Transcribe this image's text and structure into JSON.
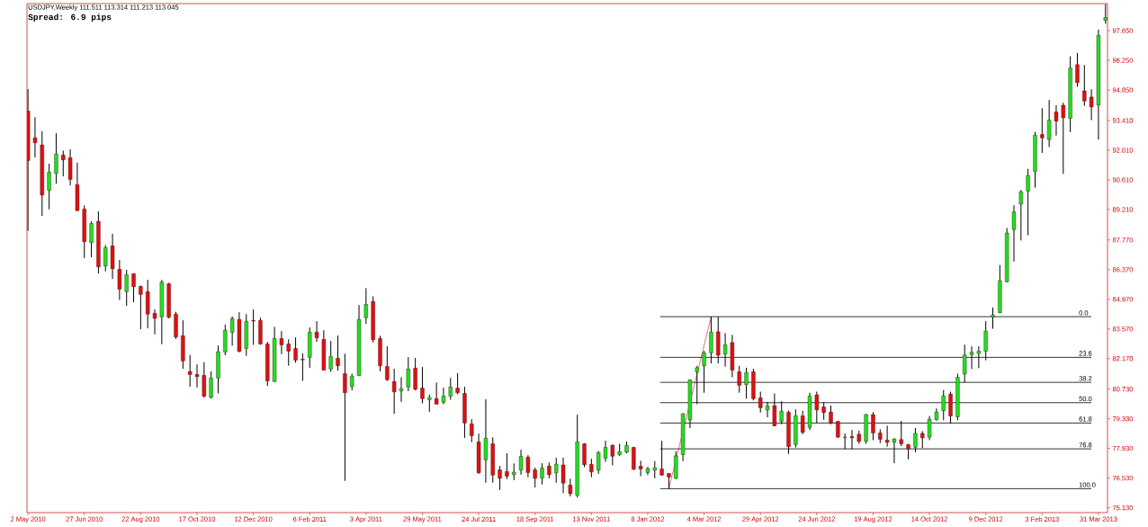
{
  "chart_data": {
    "type": "candlestick",
    "title": "USDJPY,Weekly 111.511 113.314 111.213 113.045",
    "annotations": [
      "Spread: 6.9 pips",
      {
        "text": "0.0",
        "x": "2013-03-10",
        "y": 84.15
      },
      {
        "text": "23.6",
        "x": "2013-03-10",
        "y": 82.23
      },
      {
        "text": "38.2",
        "x": "2013-03-10",
        "y": 81.05
      },
      {
        "text": "50.0",
        "x": "2013-03-10",
        "y": 80.09
      },
      {
        "text": "61.8",
        "x": "2013-03-10",
        "y": 79.13
      },
      {
        "text": "76.8",
        "x": "2013-03-10",
        "y": 77.91
      },
      {
        "text": "100.0",
        "x": "2013-03-10",
        "y": 76.03
      }
    ],
    "x": [
      "2010-05-02",
      "2010-05-09",
      "2010-05-16",
      "2010-05-23",
      "2010-05-30",
      "2010-06-06",
      "2010-06-13",
      "2010-06-20",
      "2010-06-27",
      "2010-07-04",
      "2010-07-11",
      "2010-07-18",
      "2010-07-25",
      "2010-08-01",
      "2010-08-08",
      "2010-08-15",
      "2010-08-22",
      "2010-08-29",
      "2010-09-05",
      "2010-09-12",
      "2010-09-19",
      "2010-09-26",
      "2010-10-03",
      "2010-10-10",
      "2010-10-17",
      "2010-10-24",
      "2010-10-31",
      "2010-11-07",
      "2010-11-14",
      "2010-11-21",
      "2010-11-28",
      "2010-12-05",
      "2010-12-12",
      "2010-12-19",
      "2010-12-26",
      "2011-01-02",
      "2011-01-09",
      "2011-01-16",
      "2011-01-23",
      "2011-01-30",
      "2011-02-06",
      "2011-02-13",
      "2011-02-20",
      "2011-02-27",
      "2011-03-06",
      "2011-03-13",
      "2011-03-20",
      "2011-03-27",
      "2011-04-03",
      "2011-04-10",
      "2011-04-17",
      "2011-04-24",
      "2011-05-01",
      "2011-05-08",
      "2011-05-15",
      "2011-05-22",
      "2011-05-29",
      "2011-06-05",
      "2011-06-12",
      "2011-06-19",
      "2011-06-26",
      "2011-07-03",
      "2011-07-10",
      "2011-07-17",
      "2011-07-24",
      "2011-07-31",
      "2011-08-07",
      "2011-08-14",
      "2011-08-21",
      "2011-08-28",
      "2011-09-04",
      "2011-09-11",
      "2011-09-18",
      "2011-09-25",
      "2011-10-02",
      "2011-10-09",
      "2011-10-16",
      "2011-10-23",
      "2011-10-30",
      "2011-11-06",
      "2011-11-13",
      "2011-11-20",
      "2011-11-27",
      "2011-12-04",
      "2011-12-11",
      "2011-12-18",
      "2011-12-25",
      "2012-01-01",
      "2012-01-08",
      "2012-01-15",
      "2012-01-22",
      "2012-01-29",
      "2012-02-05",
      "2012-02-12",
      "2012-02-19",
      "2012-02-26",
      "2012-03-04",
      "2012-03-11",
      "2012-03-18",
      "2012-03-25",
      "2012-04-01",
      "2012-04-08",
      "2012-04-15",
      "2012-04-22",
      "2012-04-29",
      "2012-05-06",
      "2012-05-13",
      "2012-05-20",
      "2012-05-27",
      "2012-06-03",
      "2012-06-10",
      "2012-06-17",
      "2012-06-24",
      "2012-07-01",
      "2012-07-08",
      "2012-07-15",
      "2012-07-22",
      "2012-07-29",
      "2012-08-05",
      "2012-08-12",
      "2012-08-19",
      "2012-08-26",
      "2012-09-02",
      "2012-09-09",
      "2012-09-16",
      "2012-09-23",
      "2012-09-30",
      "2012-10-07",
      "2012-10-14",
      "2012-10-21",
      "2012-10-28",
      "2012-11-04",
      "2012-11-11",
      "2012-11-18",
      "2012-11-25",
      "2012-12-02",
      "2012-12-09",
      "2012-12-16",
      "2012-12-23",
      "2012-12-30",
      "2013-01-06",
      "2013-01-13",
      "2013-01-20",
      "2013-01-27",
      "2013-02-03",
      "2013-02-10",
      "2013-02-17",
      "2013-02-24",
      "2013-03-03",
      "2013-03-10",
      "2013-03-17",
      "2013-03-24",
      "2013-03-31",
      "2013-04-07"
    ],
    "ohlc": [
      [
        93.86,
        94.89,
        88.2,
        91.52
      ],
      [
        92.59,
        93.57,
        91.66,
        92.36
      ],
      [
        92.26,
        92.9,
        88.91,
        89.89
      ],
      [
        90.11,
        91.37,
        89.22,
        90.97
      ],
      [
        90.91,
        92.81,
        90.43,
        91.83
      ],
      [
        91.78,
        91.99,
        90.77,
        91.55
      ],
      [
        91.65,
        92.05,
        90.35,
        90.63
      ],
      [
        90.38,
        91.42,
        89.12,
        89.16
      ],
      [
        89.23,
        89.4,
        86.92,
        87.69
      ],
      [
        87.64,
        88.65,
        86.95,
        88.55
      ],
      [
        88.65,
        89.12,
        86.19,
        86.5
      ],
      [
        86.54,
        87.53,
        86.29,
        87.41
      ],
      [
        87.49,
        88.06,
        85.93,
        86.41
      ],
      [
        86.39,
        86.83,
        84.94,
        85.45
      ],
      [
        85.33,
        86.36,
        84.66,
        86.13
      ],
      [
        86.18,
        86.19,
        84.83,
        85.56
      ],
      [
        85.58,
        85.62,
        83.56,
        85.2
      ],
      [
        85.33,
        85.89,
        83.6,
        84.27
      ],
      [
        84.31,
        84.49,
        83.32,
        84.07
      ],
      [
        84.14,
        85.89,
        82.85,
        85.79
      ],
      [
        85.71,
        85.75,
        84.07,
        84.12
      ],
      [
        84.27,
        84.38,
        83.1,
        83.19
      ],
      [
        83.25,
        83.98,
        81.69,
        82.06
      ],
      [
        81.56,
        82.34,
        80.84,
        81.42
      ],
      [
        81.42,
        81.9,
        80.81,
        81.32
      ],
      [
        81.38,
        82.0,
        80.34,
        80.39
      ],
      [
        80.34,
        81.57,
        80.28,
        81.26
      ],
      [
        81.25,
        82.79,
        80.53,
        82.5
      ],
      [
        82.48,
        83.77,
        82.33,
        83.51
      ],
      [
        83.41,
        84.16,
        82.78,
        84.07
      ],
      [
        84.02,
        84.36,
        82.47,
        82.51
      ],
      [
        82.65,
        84.27,
        82.3,
        83.93
      ],
      [
        83.97,
        84.49,
        82.82,
        83.94
      ],
      [
        83.97,
        84.1,
        82.82,
        82.86
      ],
      [
        82.86,
        82.96,
        80.88,
        81.12
      ],
      [
        81.08,
        83.67,
        81.08,
        83.12
      ],
      [
        83.12,
        83.47,
        82.38,
        82.82
      ],
      [
        82.86,
        83.08,
        81.83,
        82.52
      ],
      [
        82.65,
        83.17,
        81.97,
        82.1
      ],
      [
        82.14,
        82.42,
        81.12,
        82.11
      ],
      [
        82.23,
        83.64,
        81.74,
        83.42
      ],
      [
        83.42,
        83.94,
        82.96,
        83.15
      ],
      [
        83.08,
        83.51,
        81.6,
        81.63
      ],
      [
        81.68,
        83.0,
        81.55,
        82.27
      ],
      [
        82.19,
        83.26,
        81.6,
        81.83
      ],
      [
        81.46,
        82.4,
        76.4,
        80.56
      ],
      [
        80.85,
        81.46,
        80.67,
        81.34
      ],
      [
        81.36,
        84.7,
        81.36,
        84.02
      ],
      [
        84.1,
        85.5,
        83.81,
        84.73
      ],
      [
        84.87,
        85.11,
        82.93,
        83.06
      ],
      [
        83.12,
        83.25,
        81.57,
        81.83
      ],
      [
        81.8,
        82.75,
        81.12,
        81.17
      ],
      [
        81.09,
        81.69,
        79.57,
        80.6
      ],
      [
        80.64,
        81.29,
        80.13,
        80.76
      ],
      [
        80.83,
        82.24,
        80.63,
        81.68
      ],
      [
        81.72,
        82.2,
        80.67,
        80.72
      ],
      [
        80.78,
        81.77,
        80.06,
        80.28
      ],
      [
        80.23,
        80.47,
        79.66,
        80.33
      ],
      [
        80.28,
        81.04,
        80.02,
        80.02
      ],
      [
        80.11,
        80.8,
        80.02,
        80.4
      ],
      [
        80.4,
        81.26,
        80.23,
        80.83
      ],
      [
        80.78,
        81.48,
        80.49,
        80.56
      ],
      [
        80.53,
        80.84,
        78.43,
        79.13
      ],
      [
        79.09,
        79.31,
        78.22,
        78.53
      ],
      [
        78.24,
        78.63,
        76.73,
        76.78
      ],
      [
        77.39,
        80.25,
        76.31,
        78.41
      ],
      [
        78.15,
        78.45,
        76.31,
        76.67
      ],
      [
        76.92,
        77.1,
        75.97,
        76.52
      ],
      [
        76.84,
        77.7,
        76.48,
        76.62
      ],
      [
        76.69,
        77.22,
        76.43,
        76.81
      ],
      [
        76.9,
        77.87,
        76.69,
        77.56
      ],
      [
        77.52,
        77.61,
        76.57,
        76.79
      ],
      [
        76.92,
        77.02,
        76.09,
        76.52
      ],
      [
        76.52,
        77.23,
        76.23,
        77.01
      ],
      [
        77.1,
        77.26,
        76.52,
        76.69
      ],
      [
        76.78,
        77.49,
        76.31,
        77.19
      ],
      [
        77.15,
        77.49,
        75.82,
        76.29
      ],
      [
        76.2,
        76.5,
        75.67,
        75.79
      ],
      [
        75.72,
        79.52,
        75.61,
        78.24
      ],
      [
        78.15,
        78.18,
        77.05,
        77.16
      ],
      [
        77.18,
        77.44,
        76.57,
        76.82
      ],
      [
        76.9,
        77.81,
        76.73,
        77.73
      ],
      [
        77.47,
        78.29,
        77.3,
        77.98
      ],
      [
        78.08,
        78.12,
        77.13,
        77.56
      ],
      [
        77.63,
        78.15,
        77.58,
        77.78
      ],
      [
        77.75,
        78.26,
        77.7,
        78.07
      ],
      [
        77.98,
        78.01,
        76.9,
        76.95
      ],
      [
        77.09,
        77.35,
        76.62,
        76.96
      ],
      [
        76.79,
        77.06,
        76.67,
        76.98
      ],
      [
        76.9,
        77.33,
        76.52,
        77.02
      ],
      [
        76.96,
        78.29,
        76.65,
        76.67
      ],
      [
        76.75,
        76.76,
        76.03,
        76.58
      ],
      [
        76.52,
        77.8,
        76.48,
        77.58
      ],
      [
        77.64,
        79.59,
        77.33,
        79.57
      ],
      [
        79.27,
        81.19,
        78.89,
        81.17
      ],
      [
        81.55,
        81.83,
        80.02,
        81.74
      ],
      [
        81.83,
        82.54,
        80.56,
        82.44
      ],
      [
        82.44,
        84.15,
        81.94,
        83.42
      ],
      [
        83.44,
        84.15,
        81.94,
        82.33
      ],
      [
        82.38,
        83.37,
        81.79,
        82.82
      ],
      [
        82.93,
        83.29,
        81.29,
        81.63
      ],
      [
        81.55,
        81.83,
        80.56,
        80.91
      ],
      [
        80.94,
        81.74,
        80.28,
        81.51
      ],
      [
        81.55,
        81.69,
        80.2,
        80.28
      ],
      [
        80.32,
        80.61,
        79.62,
        79.85
      ],
      [
        79.75,
        80.13,
        79.4,
        79.94
      ],
      [
        79.95,
        80.53,
        78.97,
        79.0
      ],
      [
        79.21,
        80.16,
        79.07,
        79.68
      ],
      [
        79.64,
        79.71,
        77.67,
        78.01
      ],
      [
        78.11,
        79.77,
        77.97,
        79.47
      ],
      [
        79.47,
        79.71,
        78.6,
        78.69
      ],
      [
        78.92,
        80.56,
        78.8,
        80.4
      ],
      [
        80.46,
        80.61,
        79.14,
        79.75
      ],
      [
        79.89,
        80.11,
        79.28,
        79.62
      ],
      [
        79.65,
        79.96,
        79.07,
        79.14
      ],
      [
        79.21,
        79.23,
        78.43,
        78.46
      ],
      [
        78.46,
        78.64,
        77.9,
        78.45
      ],
      [
        78.49,
        78.8,
        77.9,
        78.43
      ],
      [
        78.6,
        78.77,
        78.15,
        78.26
      ],
      [
        78.26,
        79.56,
        78.15,
        79.53
      ],
      [
        79.53,
        79.64,
        78.32,
        78.66
      ],
      [
        78.66,
        78.83,
        78.18,
        78.36
      ],
      [
        78.32,
        79.0,
        78.01,
        78.22
      ],
      [
        78.22,
        78.41,
        77.23,
        78.38
      ],
      [
        78.35,
        79.23,
        78.04,
        78.15
      ],
      [
        78.11,
        78.15,
        77.41,
        77.92
      ],
      [
        77.98,
        78.89,
        77.75,
        78.64
      ],
      [
        78.64,
        78.75,
        77.94,
        78.43
      ],
      [
        78.46,
        79.46,
        78.32,
        79.31
      ],
      [
        79.29,
        79.82,
        79.24,
        79.65
      ],
      [
        79.71,
        80.69,
        79.26,
        80.41
      ],
      [
        80.5,
        80.61,
        79.1,
        79.46
      ],
      [
        79.42,
        81.46,
        79.26,
        81.29
      ],
      [
        81.44,
        82.83,
        81.04,
        82.34
      ],
      [
        82.36,
        82.75,
        81.68,
        82.47
      ],
      [
        82.41,
        82.75,
        81.72,
        82.52
      ],
      [
        82.52,
        83.94,
        82.09,
        83.47
      ],
      [
        84.13,
        84.58,
        83.58,
        84.23
      ],
      [
        84.34,
        86.59,
        84.31,
        85.85
      ],
      [
        85.8,
        88.34,
        85.77,
        88.1
      ],
      [
        88.26,
        89.41,
        86.75,
        89.1
      ],
      [
        89.46,
        90.13,
        87.75,
        90.05
      ],
      [
        90.08,
        91.13,
        87.99,
        90.81
      ],
      [
        91.0,
        92.87,
        90.24,
        92.72
      ],
      [
        92.75,
        93.99,
        91.88,
        92.59
      ],
      [
        92.51,
        94.38,
        92.16,
        93.43
      ],
      [
        93.81,
        94.13,
        92.7,
        93.38
      ],
      [
        94.13,
        94.25,
        90.89,
        93.54
      ],
      [
        93.51,
        96.44,
        92.86,
        95.89
      ],
      [
        96.05,
        96.6,
        95.0,
        95.2
      ],
      [
        94.81,
        96.03,
        94.1,
        94.33
      ],
      [
        94.52,
        94.89,
        93.43,
        94.05
      ],
      [
        94.14,
        97.7,
        92.51,
        97.43
      ],
      [
        98.14,
        98.9,
        97.98,
        98.27
      ]
    ],
    "series": [
      {
        "type": "line",
        "color": "#cc0000",
        "line_style": "dotted",
        "x": [
          "2012-01-29",
          "2012-03-11"
        ],
        "values": [
          76.03,
          84.15
        ]
      }
    ],
    "xlim": [
      "2010-05-01",
      "2013-04-09"
    ],
    "ylim": [
      74.9,
      98.93
    ],
    "xticks": [
      {
        "value": "2010-05-02",
        "label": "2 May 2010"
      },
      {
        "value": "2010-06-27",
        "label": "27 Jun 2010"
      },
      {
        "value": "2010-08-22",
        "label": "22 Aug 2010"
      },
      {
        "value": "2010-10-17",
        "label": "17 Oct 2010"
      },
      {
        "value": "2010-12-12",
        "label": "12 Dec 2010"
      },
      {
        "value": "2011-02-06",
        "label": "6 Feb 2011"
      },
      {
        "value": "2011-04-03",
        "label": "3 Apr 2011"
      },
      {
        "value": "2011-05-29",
        "label": "29 May 2011"
      },
      {
        "value": "2011-07-24",
        "label": "24 Jul 2011"
      },
      {
        "value": "2011-09-18",
        "label": "18 Sep 2011"
      },
      {
        "value": "2011-11-13",
        "label": "13 Nov 2011"
      },
      {
        "value": "2012-01-08",
        "label": "8 Jan 2012"
      },
      {
        "value": "2012-03-04",
        "label": "4 Mar 2012"
      },
      {
        "value": "2012-04-29",
        "label": "29 Apr 2012"
      },
      {
        "value": "2012-06-24",
        "label": "24 Jun 2012"
      },
      {
        "value": "2012-08-19",
        "label": "19 Aug 2012"
      },
      {
        "value": "2012-10-14",
        "label": "14 Oct 2012"
      },
      {
        "value": "2012-12-09",
        "label": "9 Dec 2012"
      },
      {
        "value": "2013-02-03",
        "label": "3 Feb 2013"
      },
      {
        "value": "2013-03-31",
        "label": "31 Mar 2013"
      }
    ],
    "yticks": [
      {
        "value": 75.13,
        "label": "75.130"
      },
      {
        "value": 76.53,
        "label": "76.530"
      },
      {
        "value": 77.93,
        "label": "77.930"
      },
      {
        "value": 79.33,
        "label": "79.330"
      },
      {
        "value": 80.73,
        "label": "80.730"
      },
      {
        "value": 82.17,
        "label": "82.170"
      },
      {
        "value": 83.57,
        "label": "83.570"
      },
      {
        "value": 84.97,
        "label": "84.970"
      },
      {
        "value": 86.37,
        "label": "86.370"
      },
      {
        "value": 87.77,
        "label": "87.770"
      },
      {
        "value": 89.21,
        "label": "89.210"
      },
      {
        "value": 90.61,
        "label": "90.610"
      },
      {
        "value": 92.01,
        "label": "92.010"
      },
      {
        "value": 93.41,
        "label": "93.410"
      },
      {
        "value": 94.85,
        "label": "94.850"
      },
      {
        "value": 96.25,
        "label": "96.250"
      },
      {
        "value": 97.65,
        "label": "97.650"
      }
    ],
    "ref_lines": [
      {
        "axis": "y",
        "value": 84.15
      },
      {
        "axis": "y",
        "value": 82.23
      },
      {
        "axis": "y",
        "value": 81.05
      },
      {
        "axis": "y",
        "value": 80.09
      },
      {
        "axis": "y",
        "value": 79.13
      },
      {
        "axis": "y",
        "value": 77.91
      },
      {
        "axis": "y",
        "value": 76.03
      }
    ]
  }
}
